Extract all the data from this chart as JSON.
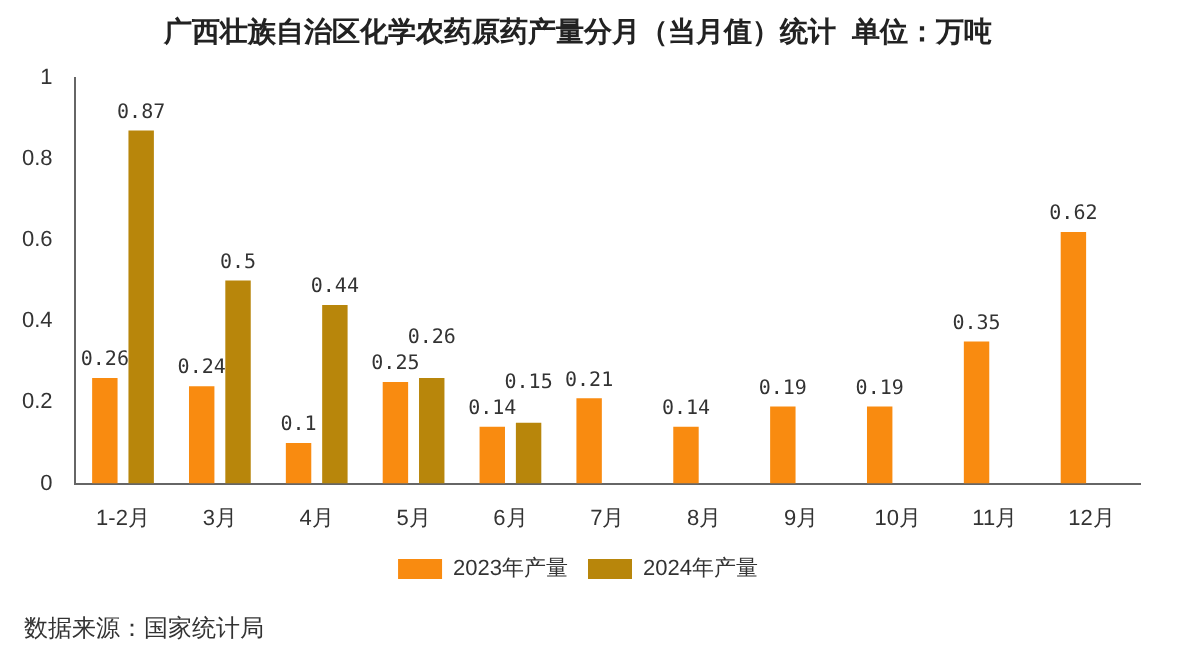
{
  "chart_data": {
    "type": "bar",
    "title": "广西壮族自治区化学农药原药产量分月（当月值）统计  单位：万吨",
    "categories": [
      "1-2月",
      "3月",
      "4月",
      "5月",
      "6月",
      "7月",
      "8月",
      "9月",
      "10月",
      "11月",
      "12月"
    ],
    "series": [
      {
        "name": "2023年产量",
        "color": "#f98b10",
        "values": [
          0.26,
          0.24,
          0.1,
          0.25,
          0.14,
          0.21,
          0.14,
          0.19,
          0.19,
          0.35,
          0.62
        ]
      },
      {
        "name": "2024年产量",
        "color": "#b8860b",
        "values": [
          0.87,
          0.5,
          0.44,
          0.26,
          0.15,
          null,
          null,
          null,
          null,
          null,
          null
        ]
      }
    ],
    "ylim": [
      0,
      1
    ],
    "yticks": [
      0,
      0.2,
      0.4,
      0.6,
      0.8,
      1
    ],
    "grid": false,
    "legend": "bottom",
    "data_labels": true,
    "annotations": [
      "数据来源：国家统计局"
    ]
  }
}
